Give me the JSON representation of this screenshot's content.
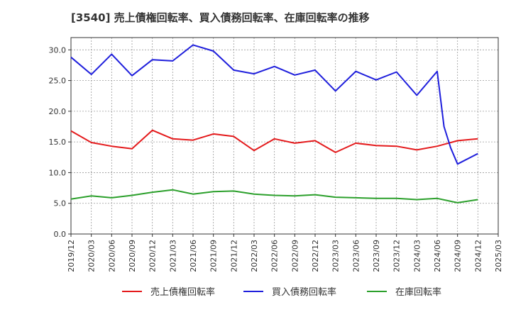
{
  "chart_data": {
    "type": "line",
    "title": "[3540]  売上債権回転率、買入債務回転率、在庫回転率の推移",
    "xlabel": "",
    "ylabel": "",
    "ylim": [
      0,
      32
    ],
    "yticks": [
      "0.0",
      "5.0",
      "10.0",
      "15.0",
      "20.0",
      "25.0",
      "30.0"
    ],
    "categories": [
      "2019/12",
      "2020/03",
      "2020/06",
      "2020/09",
      "2020/12",
      "2021/03",
      "2021/06",
      "2021/09",
      "2021/12",
      "2022/03",
      "2022/06",
      "2022/09",
      "2022/12",
      "2023/03",
      "2023/06",
      "2023/09",
      "2023/12",
      "2024/03",
      "2024/06",
      "2024/09",
      "2024/12",
      "2025/03"
    ],
    "series": [
      {
        "name": "売上債権回転率",
        "color": "#e41a1c",
        "x": [
          "2019/12",
          "2020/03",
          "2020/06",
          "2020/09",
          "2020/12",
          "2021/03",
          "2021/06",
          "2021/09",
          "2021/12",
          "2022/03",
          "2022/06",
          "2022/09",
          "2022/12",
          "2023/03",
          "2023/06",
          "2023/09",
          "2023/12",
          "2024/03",
          "2024/06",
          "2024/09",
          "2024/12"
        ],
        "values": [
          16.8,
          14.9,
          14.3,
          13.9,
          16.9,
          15.5,
          15.3,
          16.3,
          15.9,
          13.6,
          15.5,
          14.8,
          15.2,
          13.3,
          14.8,
          14.4,
          14.3,
          13.7,
          14.3,
          15.2,
          15.5
        ]
      },
      {
        "name": "買入債務回転率",
        "color": "#1f1fdc",
        "x": [
          "2019/12",
          "2020/03",
          "2020/06",
          "2020/09",
          "2020/12",
          "2021/03",
          "2021/06",
          "2021/09",
          "2021/12",
          "2022/03",
          "2022/06",
          "2022/09",
          "2022/12",
          "2023/03",
          "2023/06",
          "2023/09",
          "2023/12",
          "2024/03",
          "2024/06",
          "2024/07",
          "2024/08",
          "2024/09",
          "2024/12"
        ],
        "values": [
          28.8,
          26.0,
          29.3,
          25.8,
          28.4,
          28.2,
          30.8,
          29.8,
          26.7,
          26.1,
          27.3,
          25.9,
          26.7,
          23.3,
          26.5,
          25.1,
          26.4,
          22.6,
          26.5,
          17.5,
          14.0,
          11.4,
          13.1
        ]
      },
      {
        "name": "在庫回転率",
        "color": "#2ca02c",
        "x": [
          "2019/12",
          "2020/03",
          "2020/06",
          "2020/09",
          "2020/12",
          "2021/03",
          "2021/06",
          "2021/09",
          "2021/12",
          "2022/03",
          "2022/06",
          "2022/09",
          "2022/12",
          "2023/03",
          "2023/06",
          "2023/09",
          "2023/12",
          "2024/03",
          "2024/06",
          "2024/09",
          "2024/12"
        ],
        "values": [
          5.7,
          6.2,
          5.9,
          6.3,
          6.8,
          7.2,
          6.5,
          6.9,
          7.0,
          6.5,
          6.3,
          6.2,
          6.4,
          6.0,
          5.9,
          5.8,
          5.8,
          5.6,
          5.8,
          5.1,
          5.6
        ]
      }
    ]
  }
}
